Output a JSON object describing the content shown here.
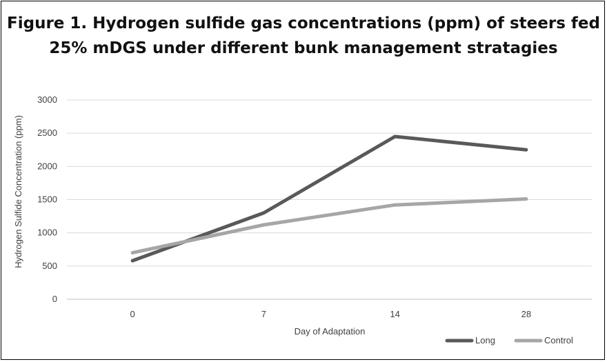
{
  "chart_data": {
    "type": "line",
    "title": "Figure 1. Hydrogen sulfide gas concentrations (ppm) of steers fed 25% mDGS under different bunk management stratagies",
    "xlabel": "Day of Adaptation",
    "ylabel": "Hydrogen Sulfide Concentration (ppm)",
    "categories": [
      "0",
      "7",
      "14",
      "28"
    ],
    "ylim": [
      0,
      3000
    ],
    "yticks": [
      0,
      500,
      1000,
      1500,
      2000,
      2500,
      3000
    ],
    "grid": true,
    "legend_position": "bottom-right",
    "series": [
      {
        "name": "Long",
        "values": [
          580,
          1300,
          2450,
          2250
        ],
        "color": "#595959"
      },
      {
        "name": "Control",
        "values": [
          700,
          1120,
          1420,
          1510
        ],
        "color": "#a6a6a6"
      }
    ]
  }
}
